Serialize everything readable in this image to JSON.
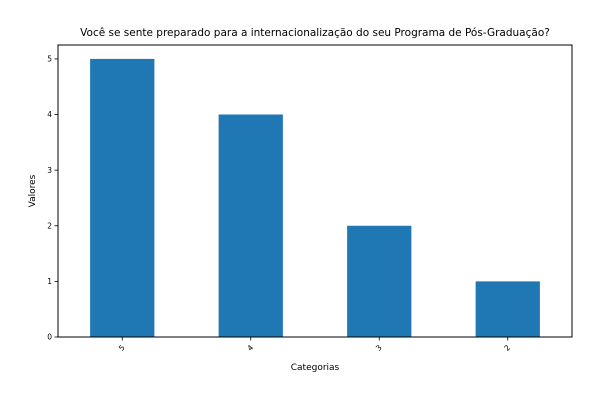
{
  "chart_data": {
    "type": "bar",
    "title": "Você se sente preparado para a internacionalização do seu Programa de Pós-Graduação?",
    "xlabel": "Categorias",
    "ylabel": "Valores",
    "categories": [
      "5",
      "4",
      "3",
      "2"
    ],
    "values": [
      5,
      4,
      2,
      1
    ],
    "ylim": [
      0,
      5.25
    ],
    "yticks": [
      0,
      1,
      2,
      3,
      4,
      5
    ],
    "bar_color": "#1f77b4",
    "grid": false,
    "legend": "none",
    "x_tick_rotation_deg": 45
  }
}
